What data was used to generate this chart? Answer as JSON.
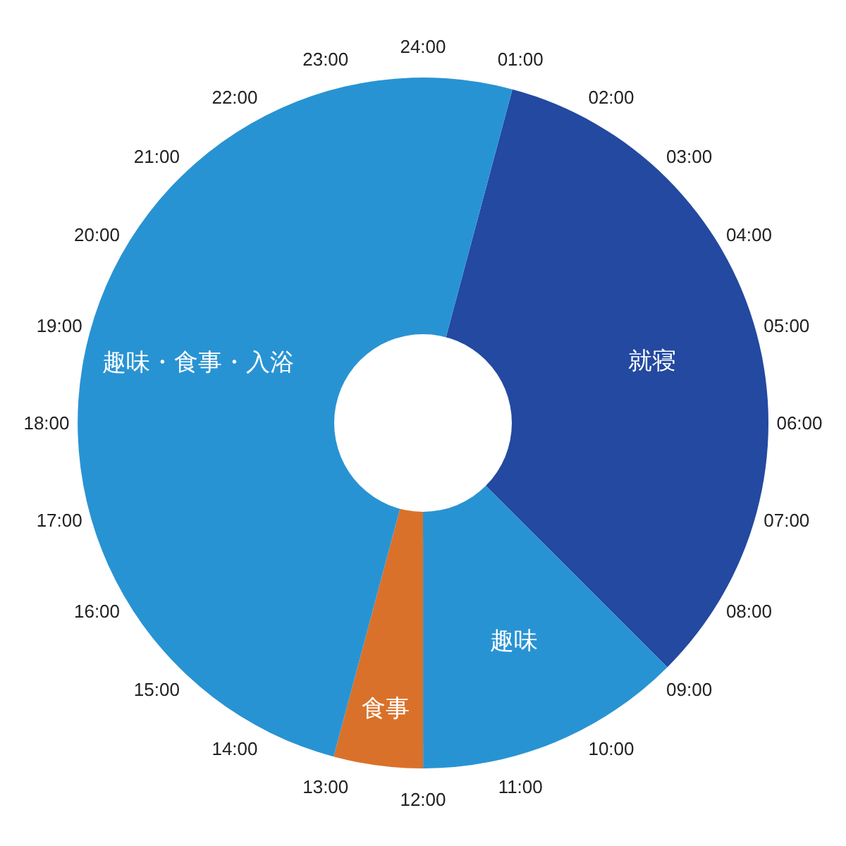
{
  "chart_data": {
    "type": "donut",
    "categories": [
      "就寝",
      "趣味",
      "食事",
      "趣味・食事・入浴"
    ],
    "values": [
      33.33,
      12.5,
      4.17,
      50
    ],
    "colors": [
      "#2349a0",
      "#2893d3",
      "#d9712a",
      "#2893d3"
    ],
    "annotations": [
      "01:00",
      "02:00",
      "03:00",
      "04:00",
      "05:00",
      "06:00",
      "07:00",
      "08:00",
      "09:00",
      "10:00",
      "11:00",
      "12:00",
      "13:00",
      "14:00",
      "15:00",
      "16:00",
      "17:00",
      "18:00",
      "19:00",
      "20:00",
      "21:00",
      "22:00",
      "23:00",
      "24:00"
    ]
  }
}
